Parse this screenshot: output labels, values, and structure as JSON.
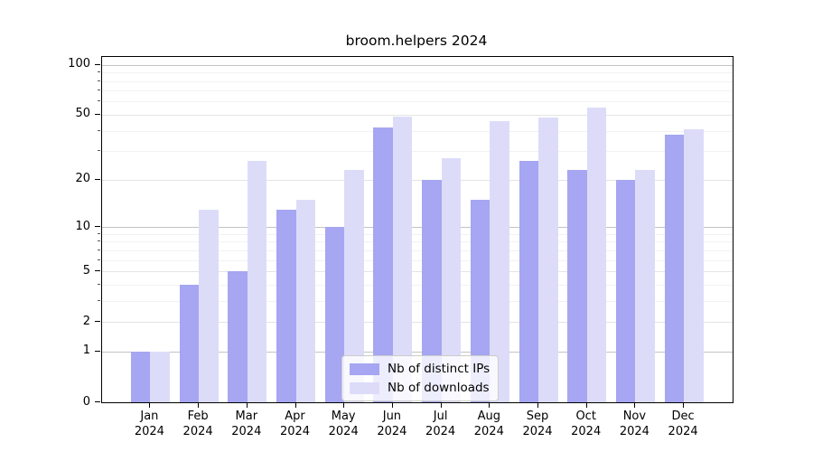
{
  "title": "broom.helpers 2024",
  "chart_data": {
    "type": "bar",
    "categories": [
      "Jan",
      "Feb",
      "Mar",
      "Apr",
      "May",
      "Jun",
      "Jul",
      "Aug",
      "Sep",
      "Oct",
      "Nov",
      "Dec"
    ],
    "year_label": "2024",
    "series": [
      {
        "name": "Nb of distinct IPs",
        "color": "#a6a6f2",
        "values": [
          1,
          4,
          5,
          13,
          10,
          42,
          20,
          15,
          26,
          23,
          20,
          38
        ]
      },
      {
        "name": "Nb of downloads",
        "color": "#dcdcf9",
        "values": [
          1,
          13,
          26,
          15,
          23,
          49,
          27,
          46,
          48,
          55,
          23,
          41
        ]
      }
    ],
    "yscale": "log1p",
    "yticks": [
      0,
      1,
      2,
      5,
      10,
      20,
      50,
      100
    ],
    "ylim": [
      0,
      112
    ],
    "grid": true,
    "legend_position": "bottom-center",
    "xlabel": "",
    "ylabel": ""
  }
}
